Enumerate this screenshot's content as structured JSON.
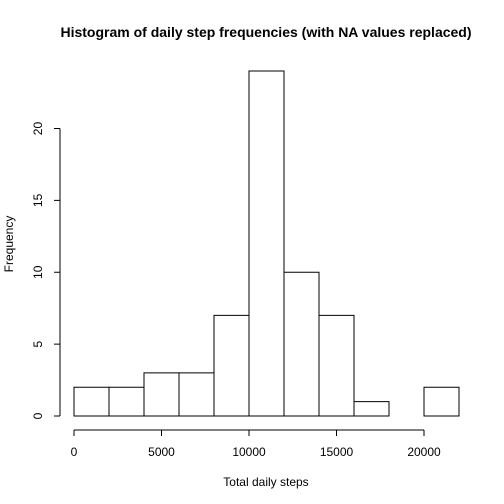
{
  "chart_data": {
    "type": "bar",
    "title": "Histogram of daily step frequencies (with NA values replaced)",
    "xlabel": "Total daily steps",
    "ylabel": "Frequency",
    "bins": [
      {
        "from": 0,
        "to": 2000,
        "count": 2
      },
      {
        "from": 2000,
        "to": 4000,
        "count": 2
      },
      {
        "from": 4000,
        "to": 6000,
        "count": 3
      },
      {
        "from": 6000,
        "to": 8000,
        "count": 3
      },
      {
        "from": 8000,
        "to": 10000,
        "count": 7
      },
      {
        "from": 10000,
        "to": 12000,
        "count": 24
      },
      {
        "from": 12000,
        "to": 14000,
        "count": 10
      },
      {
        "from": 14000,
        "to": 16000,
        "count": 7
      },
      {
        "from": 16000,
        "to": 18000,
        "count": 1
      },
      {
        "from": 18000,
        "to": 20000,
        "count": 0
      },
      {
        "from": 20000,
        "to": 22000,
        "count": 2
      }
    ],
    "xticks": [
      0,
      5000,
      10000,
      15000,
      20000
    ],
    "yticks": [
      0,
      5,
      10,
      15,
      20
    ],
    "xlim": [
      0,
      22000
    ],
    "ylim": [
      0,
      24
    ],
    "grid": false,
    "legend": "none",
    "bar_fill": "#ffffff",
    "bar_stroke": "#000000"
  }
}
